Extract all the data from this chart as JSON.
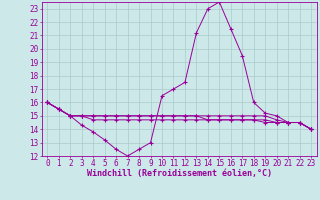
{
  "xlabel": "Windchill (Refroidissement éolien,°C)",
  "background_color": "#cce8e8",
  "grid_color": "#aacccc",
  "line_color": "#990099",
  "xlim": [
    -0.5,
    23.5
  ],
  "ylim": [
    12,
    23.5
  ],
  "xticks": [
    0,
    1,
    2,
    3,
    4,
    5,
    6,
    7,
    8,
    9,
    10,
    11,
    12,
    13,
    14,
    15,
    16,
    17,
    18,
    19,
    20,
    21,
    22,
    23
  ],
  "yticks": [
    12,
    13,
    14,
    15,
    16,
    17,
    18,
    19,
    20,
    21,
    22,
    23
  ],
  "lines": [
    [
      16.0,
      15.5,
      15.0,
      14.3,
      13.8,
      13.2,
      12.5,
      12.0,
      12.5,
      13.0,
      16.5,
      17.0,
      17.5,
      21.2,
      23.0,
      23.5,
      21.5,
      19.5,
      16.0,
      15.2,
      15.0,
      14.5,
      14.5,
      14.0
    ],
    [
      16.0,
      15.5,
      15.0,
      15.0,
      15.0,
      15.0,
      15.0,
      15.0,
      15.0,
      15.0,
      15.0,
      15.0,
      15.0,
      15.0,
      15.0,
      15.0,
      15.0,
      15.0,
      15.0,
      15.0,
      14.7,
      14.5,
      14.5,
      14.0
    ],
    [
      16.0,
      15.5,
      15.0,
      15.0,
      15.0,
      15.0,
      15.0,
      15.0,
      15.0,
      15.0,
      15.0,
      15.0,
      15.0,
      15.0,
      14.7,
      14.7,
      14.7,
      14.7,
      14.7,
      14.7,
      14.5,
      14.5,
      14.5,
      14.0
    ],
    [
      16.0,
      15.5,
      15.0,
      15.0,
      14.7,
      14.7,
      14.7,
      14.7,
      14.7,
      14.7,
      14.7,
      14.7,
      14.7,
      14.7,
      14.7,
      14.7,
      14.7,
      14.7,
      14.7,
      14.5,
      14.5,
      14.5,
      14.5,
      14.0
    ]
  ],
  "xlabel_fontsize": 6,
  "tick_fontsize": 5.5
}
